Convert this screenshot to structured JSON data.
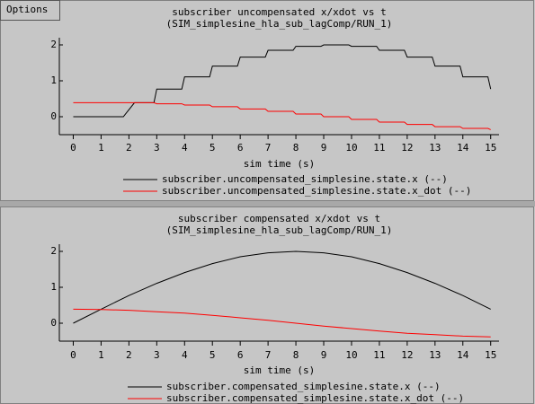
{
  "options_button": "Options",
  "chart_data": [
    {
      "type": "line",
      "title": "subscriber uncompensated x/xdot vs t",
      "subtitle": "(SIM_simplesine_hla_sub_lagComp/RUN_1)",
      "x_label": "sim time (s)",
      "xlim": [
        -0.5,
        15.3
      ],
      "ylim": [
        -0.5,
        2.2
      ],
      "xticks": [
        0,
        1,
        2,
        3,
        4,
        5,
        6,
        7,
        8,
        9,
        10,
        11,
        12,
        13,
        14,
        15
      ],
      "yticks": [
        0,
        1,
        2
      ],
      "series": [
        {
          "name": "subscriber.uncompensated_simplesine.state.x (--)",
          "color": "#000000",
          "x": [
            0,
            1.8,
            2.2,
            2.9,
            3.0,
            3.9,
            4.0,
            4.9,
            5.0,
            5.9,
            6.0,
            6.9,
            7.0,
            7.9,
            8.0,
            8.9,
            9.0,
            9.9,
            10.0,
            10.9,
            11.0,
            11.9,
            12.0,
            12.9,
            13.0,
            13.9,
            14.0,
            14.9,
            15.0
          ],
          "values": [
            0,
            0,
            0.39,
            0.39,
            0.77,
            0.77,
            1.11,
            1.11,
            1.41,
            1.41,
            1.66,
            1.66,
            1.85,
            1.85,
            1.96,
            1.96,
            2.0,
            2.0,
            1.96,
            1.96,
            1.85,
            1.85,
            1.66,
            1.66,
            1.41,
            1.41,
            1.11,
            1.11,
            0.77
          ]
        },
        {
          "name": "subscriber.uncompensated_simplesine.state.x_dot (--)",
          "color": "#ff0000",
          "x": [
            0,
            2.9,
            3.0,
            3.9,
            4.0,
            4.9,
            5.0,
            5.9,
            6.0,
            6.9,
            7.0,
            7.9,
            8.0,
            8.9,
            9.0,
            9.9,
            10.0,
            10.9,
            11.0,
            11.9,
            12.0,
            12.9,
            13.0,
            13.9,
            14.0,
            14.9,
            15.0
          ],
          "values": [
            0.39,
            0.39,
            0.36,
            0.36,
            0.325,
            0.325,
            0.277,
            0.277,
            0.217,
            0.217,
            0.149,
            0.149,
            0.076,
            0.076,
            0,
            0,
            -0.076,
            -0.076,
            -0.149,
            -0.149,
            -0.217,
            -0.217,
            -0.277,
            -0.277,
            -0.325,
            -0.325,
            -0.36
          ]
        }
      ]
    },
    {
      "type": "line",
      "title": "subscriber compensated x/xdot vs t",
      "subtitle": "(SIM_simplesine_hla_sub_lagComp/RUN_1)",
      "x_label": "sim time (s)",
      "xlim": [
        -0.5,
        15.3
      ],
      "ylim": [
        -0.5,
        2.2
      ],
      "xticks": [
        0,
        1,
        2,
        3,
        4,
        5,
        6,
        7,
        8,
        9,
        10,
        11,
        12,
        13,
        14,
        15
      ],
      "yticks": [
        0,
        1,
        2
      ],
      "x": [
        0,
        1,
        2,
        3,
        4,
        5,
        6,
        7,
        8,
        9,
        10,
        11,
        12,
        13,
        14,
        15
      ],
      "series": [
        {
          "name": "subscriber.compensated_simplesine.state.x (--)",
          "color": "#000000",
          "values": [
            0,
            0.39,
            0.77,
            1.11,
            1.41,
            1.66,
            1.85,
            1.96,
            2.0,
            1.96,
            1.85,
            1.66,
            1.41,
            1.11,
            0.77,
            0.39
          ]
        },
        {
          "name": "subscriber.compensated_simplesine.state.x_dot (--)",
          "color": "#ff0000",
          "values": [
            0.39,
            0.38,
            0.36,
            0.32,
            0.28,
            0.22,
            0.15,
            0.08,
            0,
            -0.08,
            -0.15,
            -0.22,
            -0.28,
            -0.32,
            -0.36,
            -0.38
          ]
        }
      ]
    }
  ]
}
